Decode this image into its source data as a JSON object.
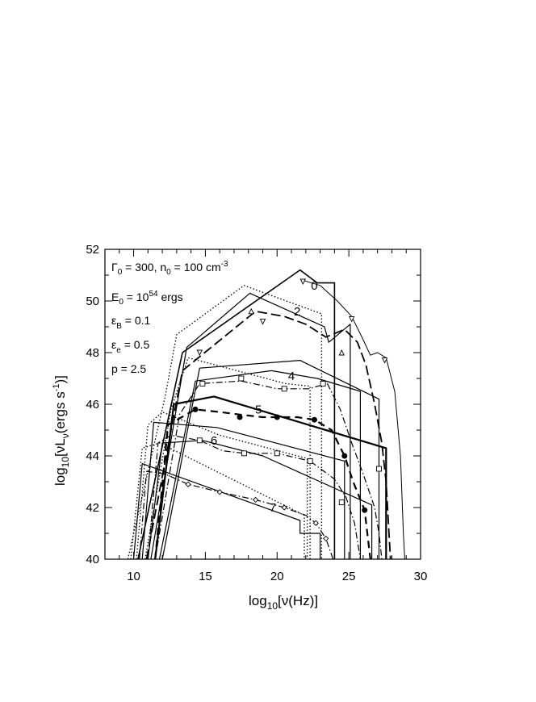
{
  "chart_data": {
    "type": "line",
    "xlabel_main": "log",
    "xlabel_sub": "10",
    "xlabel_rest": "[ν(Hz)]",
    "ylabel_main": "log",
    "ylabel_sub": "10",
    "ylabel_rest": "[νL",
    "ylabel_nu_sub": "ν",
    "ylabel_units": "(ergs s",
    "ylabel_exp": "-1",
    "ylabel_close": ")]",
    "xlim": [
      8,
      30
    ],
    "ylim": [
      40,
      52
    ],
    "xticks": [
      10,
      15,
      20,
      25,
      30
    ],
    "yticks": [
      40,
      42,
      44,
      46,
      48,
      50,
      52
    ],
    "parameters": {
      "gamma": "Γ",
      "gamma_sub": "0",
      "gamma_rest": " = 300, n",
      "n_sub": "0",
      "n_rest": " = 100 cm",
      "n_exp": "-3",
      "E": "E",
      "E_sub": "0",
      "E_rest": " = 10",
      "E_exp": "54",
      "E_units": " ergs",
      "epsB": "ε",
      "epsB_sub": "B",
      "epsB_rest": " = 0.1",
      "epse": "ε",
      "epse_sub": "e",
      "epse_rest": " = 0.5",
      "p": "p = 2.5"
    },
    "curve_labels": [
      {
        "text": "0",
        "x": 22.6,
        "y": 50.6
      },
      {
        "text": "2",
        "x": 21.4,
        "y": 49.6
      },
      {
        "text": "4",
        "x": 21.0,
        "y": 47.1
      },
      {
        "text": "5",
        "x": 18.7,
        "y": 45.8
      },
      {
        "text": "6",
        "x": 15.6,
        "y": 44.6
      },
      {
        "text": "7",
        "x": 19.7,
        "y": 42.0
      }
    ],
    "series": [
      {
        "style": "solid",
        "width": 1.6,
        "points": [
          [
            10.3,
            40
          ],
          [
            13.4,
            48.0
          ],
          [
            21.6,
            51.2
          ],
          [
            22.8,
            50.7
          ],
          [
            24.0,
            50.7
          ],
          [
            24.0,
            40
          ]
        ]
      },
      {
        "style": "solid",
        "width": 1.2,
        "points": [
          [
            11.2,
            40
          ],
          [
            13.7,
            48.2
          ],
          [
            18.1,
            50.3
          ],
          [
            22.1,
            49.3
          ],
          [
            23.3,
            49.0
          ],
          [
            23.6,
            48.4
          ],
          [
            25.1,
            49.1
          ],
          [
            25.1,
            40
          ]
        ]
      },
      {
        "style": "solid",
        "width": 1.2,
        "points": [
          [
            11.8,
            40
          ],
          [
            14.3,
            46.9
          ],
          [
            19.6,
            47.3
          ],
          [
            22.8,
            47.0
          ],
          [
            25.8,
            46.5
          ],
          [
            25.8,
            40
          ]
        ]
      },
      {
        "style": "solid",
        "width": 1.2,
        "points": [
          [
            12.0,
            40
          ],
          [
            14.6,
            47.4
          ],
          [
            21.6,
            47.7
          ],
          [
            27.1,
            46.2
          ],
          [
            27.1,
            40
          ]
        ]
      },
      {
        "style": "solid",
        "width": 2.2,
        "points": [
          [
            11.5,
            40
          ],
          [
            12.8,
            46.0
          ],
          [
            15.6,
            46.3
          ],
          [
            27.6,
            44.3
          ],
          [
            27.6,
            40
          ]
        ]
      },
      {
        "style": "solid",
        "width": 1.2,
        "points": [
          [
            10.6,
            40
          ],
          [
            11.4,
            45.3
          ],
          [
            15.8,
            45.1
          ],
          [
            24.7,
            43.8
          ],
          [
            24.7,
            40
          ]
        ]
      },
      {
        "style": "solid",
        "width": 1.2,
        "points": [
          [
            11.0,
            40
          ],
          [
            12.0,
            44.5
          ],
          [
            14.8,
            44.6
          ],
          [
            19.0,
            44.0
          ],
          [
            26.6,
            42.1
          ],
          [
            26.6,
            40
          ]
        ]
      },
      {
        "style": "solid",
        "width": 1.2,
        "points": [
          [
            10.0,
            40
          ],
          [
            10.6,
            43.7
          ],
          [
            21.6,
            41.5
          ],
          [
            21.6,
            41.0
          ],
          [
            23.0,
            41.0
          ],
          [
            23.0,
            40
          ]
        ]
      },
      {
        "style": "dotted",
        "width": 1.3,
        "points": [
          [
            9.6,
            40
          ],
          [
            12.2,
            46.3
          ],
          [
            13.0,
            48.7
          ],
          [
            17.7,
            50.6
          ],
          [
            23.1,
            49.5
          ],
          [
            23.1,
            40
          ]
        ]
      },
      {
        "style": "dotted",
        "width": 1.3,
        "points": [
          [
            10.8,
            40
          ],
          [
            12.6,
            45.8
          ],
          [
            13.8,
            47.8
          ],
          [
            20.6,
            46.8
          ],
          [
            22.3,
            46.7
          ],
          [
            22.3,
            40
          ]
        ]
      },
      {
        "style": "dotted",
        "width": 1.3,
        "points": [
          [
            10.2,
            40
          ],
          [
            11.0,
            45.2
          ],
          [
            12.0,
            45.7
          ],
          [
            16.0,
            44.8
          ],
          [
            22.1,
            43.9
          ],
          [
            22.1,
            40
          ]
        ]
      },
      {
        "style": "dotted",
        "width": 1.3,
        "points": [
          [
            9.8,
            40
          ],
          [
            10.6,
            44.3
          ],
          [
            11.8,
            44.5
          ],
          [
            21.9,
            41.7
          ],
          [
            21.9,
            40
          ]
        ]
      },
      {
        "style": "longdash",
        "width": 1.8,
        "points": [
          [
            10.9,
            40
          ],
          [
            13.4,
            47.3
          ],
          [
            18.5,
            49.6
          ],
          [
            20.5,
            49.4
          ],
          [
            22.0,
            49.1
          ],
          [
            23.4,
            48.6
          ],
          [
            24.7,
            48.9
          ],
          [
            25.6,
            48.4
          ],
          [
            26.2,
            47.5
          ],
          [
            26.8,
            46.0
          ],
          [
            27.3,
            44.5
          ],
          [
            27.6,
            43.0
          ],
          [
            27.8,
            41.0
          ],
          [
            27.9,
            40
          ]
        ]
      },
      {
        "style": "dashdot",
        "width": 1.2,
        "points": [
          [
            11.5,
            40
          ],
          [
            13.2,
            45.6
          ],
          [
            14.6,
            46.8
          ],
          [
            17.5,
            46.9
          ],
          [
            20.0,
            46.6
          ],
          [
            22.2,
            46.6
          ],
          [
            23.5,
            46.8
          ],
          [
            24.4,
            45.8
          ],
          [
            25.2,
            44.5
          ],
          [
            26.0,
            43.3
          ],
          [
            26.8,
            42.0
          ],
          [
            27.1,
            41.0
          ],
          [
            27.3,
            40
          ]
        ]
      },
      {
        "style": "dash",
        "width": 2.2,
        "points": [
          [
            11.5,
            40
          ],
          [
            12.4,
            45.2
          ],
          [
            14.3,
            45.8
          ],
          [
            16.0,
            45.7
          ],
          [
            17.4,
            45.6
          ],
          [
            19.0,
            45.5
          ],
          [
            20.0,
            45.5
          ],
          [
            21.4,
            45.5
          ],
          [
            22.6,
            45.4
          ],
          [
            23.8,
            45.0
          ],
          [
            24.7,
            44.0
          ],
          [
            25.3,
            43.0
          ],
          [
            26.1,
            41.9
          ],
          [
            26.5,
            40.0
          ]
        ]
      },
      {
        "style": "dashdot",
        "width": 1.2,
        "points": [
          [
            11.0,
            40
          ],
          [
            11.7,
            44.5
          ],
          [
            12.6,
            44.8
          ],
          [
            14.6,
            44.6
          ],
          [
            16.2,
            44.2
          ],
          [
            17.7,
            44.1
          ],
          [
            20.0,
            44.1
          ],
          [
            22.3,
            43.8
          ],
          [
            24.0,
            43.1
          ],
          [
            24.8,
            42.4
          ],
          [
            25.4,
            41.4
          ],
          [
            25.8,
            40.0
          ]
        ]
      },
      {
        "style": "dashdot",
        "width": 1.2,
        "points": [
          [
            10.4,
            40
          ],
          [
            10.9,
            43.4
          ],
          [
            12.2,
            43.3
          ],
          [
            13.8,
            42.9
          ],
          [
            16.0,
            42.6
          ],
          [
            18.5,
            42.3
          ],
          [
            20.5,
            42.0
          ],
          [
            22.0,
            41.7
          ],
          [
            22.7,
            41.4
          ],
          [
            23.4,
            40.8
          ],
          [
            23.9,
            40.0
          ]
        ]
      },
      {
        "style": "solid",
        "width": 1.0,
        "points": [
          [
            21.8,
            50.8
          ],
          [
            23.0,
            50.6
          ],
          [
            24.2,
            50.0
          ],
          [
            25.2,
            49.4
          ],
          [
            26.0,
            48.5
          ],
          [
            26.5,
            47.9
          ],
          [
            27.0,
            48.0
          ],
          [
            27.6,
            47.8
          ],
          [
            28.2,
            46.5
          ],
          [
            28.6,
            44.0
          ],
          [
            28.8,
            41.0
          ],
          [
            28.9,
            40
          ]
        ]
      }
    ],
    "markers": [
      {
        "shape": "tri-down",
        "points": [
          [
            21.8,
            50.75
          ],
          [
            19.0,
            49.2
          ],
          [
            25.2,
            49.3
          ],
          [
            14.6,
            48.0
          ],
          [
            27.5,
            47.7
          ]
        ]
      },
      {
        "shape": "tri-up",
        "points": [
          [
            18.2,
            49.6
          ],
          [
            24.5,
            48.0
          ]
        ]
      },
      {
        "shape": "square",
        "points": [
          [
            17.5,
            47.0
          ],
          [
            20.5,
            46.6
          ],
          [
            23.2,
            46.8
          ],
          [
            14.8,
            46.8
          ],
          [
            27.1,
            43.5
          ],
          [
            24.5,
            42.2
          ]
        ]
      },
      {
        "shape": "square",
        "points": [
          [
            14.6,
            44.6
          ],
          [
            17.7,
            44.1
          ],
          [
            20.0,
            44.1
          ],
          [
            22.3,
            43.8
          ]
        ]
      },
      {
        "shape": "circle-filled",
        "points": [
          [
            14.3,
            45.8
          ],
          [
            17.4,
            45.5
          ],
          [
            20.0,
            45.5
          ],
          [
            22.6,
            45.4
          ],
          [
            24.7,
            44.0
          ],
          [
            26.1,
            41.9
          ]
        ]
      },
      {
        "shape": "diamond",
        "points": [
          [
            13.8,
            42.9
          ],
          [
            16.0,
            42.6
          ],
          [
            18.5,
            42.3
          ],
          [
            20.5,
            42.0
          ],
          [
            22.7,
            41.4
          ],
          [
            23.4,
            40.8
          ]
        ]
      }
    ]
  }
}
